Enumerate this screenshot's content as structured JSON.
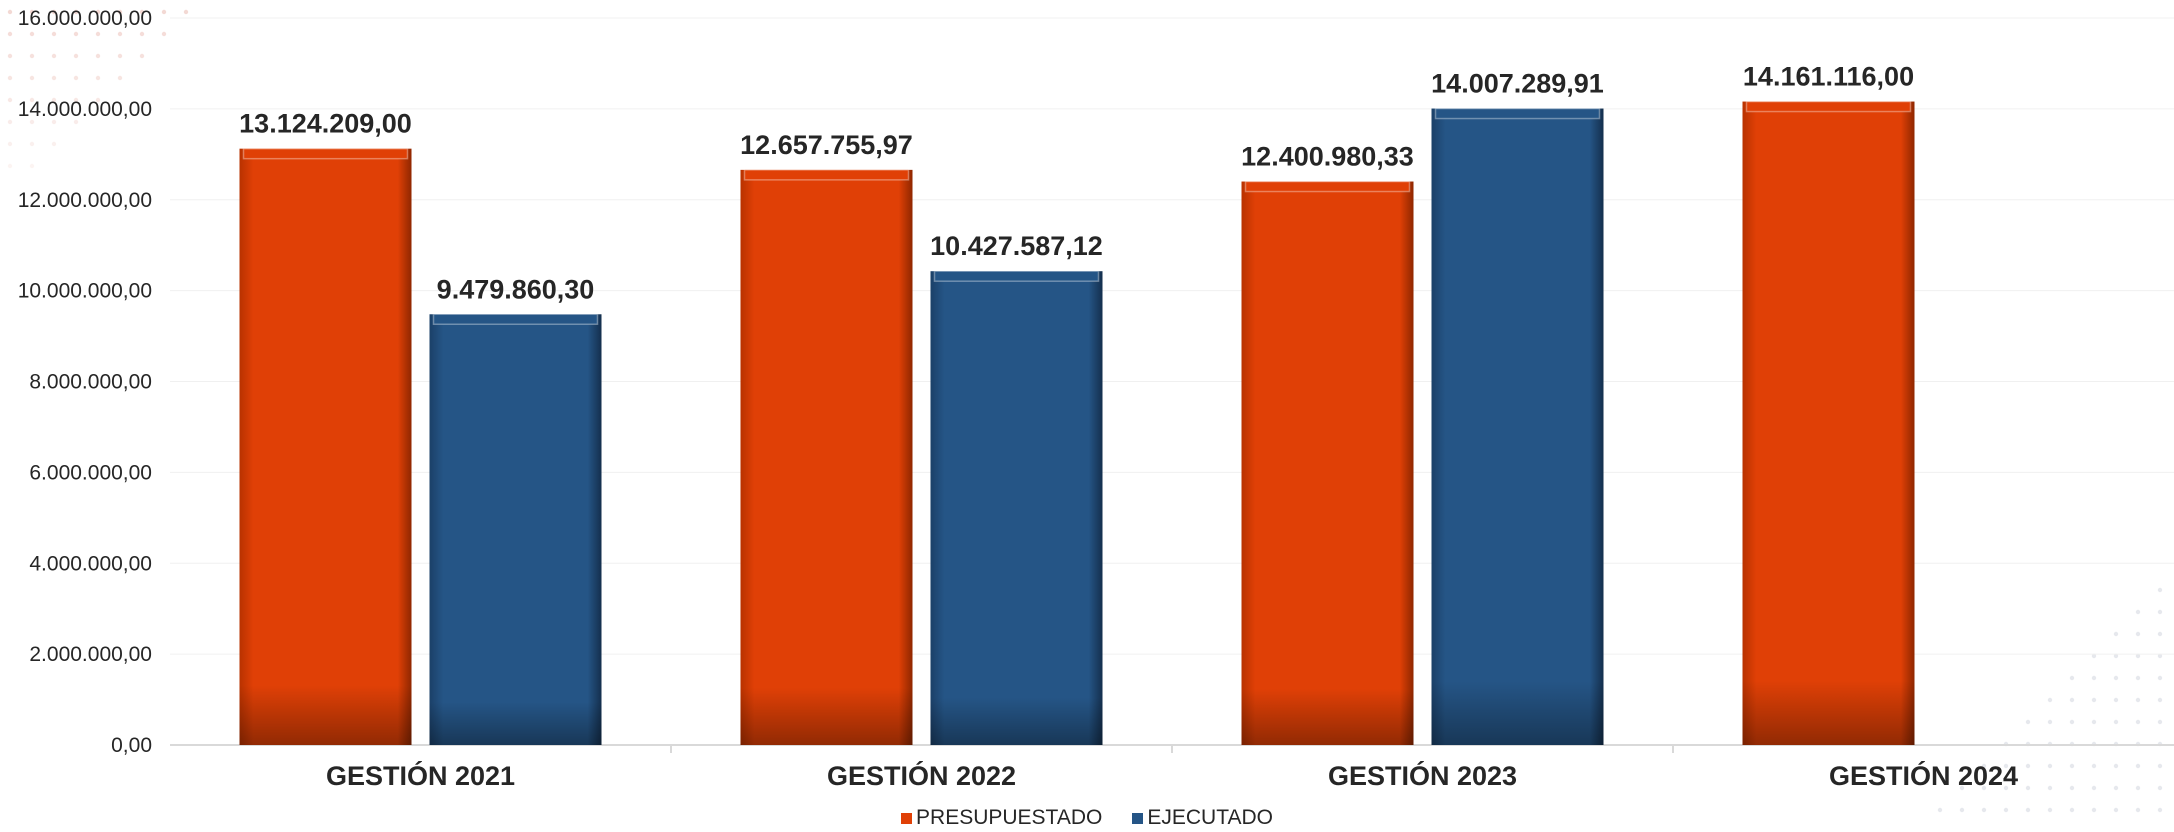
{
  "colors": {
    "presupuestado": "#E04006",
    "ejecutado": "#255586"
  },
  "chart_data": {
    "type": "bar",
    "categories": [
      "GESTIÓN 2021",
      "GESTIÓN 2022",
      "GESTIÓN 2023",
      "GESTIÓN 2024"
    ],
    "series": [
      {
        "name": "PRESUPUESTADO",
        "values": [
          13124209.0,
          12657755.97,
          12400980.33,
          14161116.0
        ],
        "labels": [
          "13.124.209,00",
          "12.657.755,97",
          "12.400.980,33",
          "14.161.116,00"
        ]
      },
      {
        "name": "EJECUTADO",
        "values": [
          9479860.3,
          10427587.12,
          14007289.91,
          null
        ],
        "labels": [
          "9.479.860,30",
          "10.427.587,12",
          "14.007.289,91",
          null
        ]
      }
    ],
    "ylim": [
      0,
      16000000
    ],
    "yticks": [
      0,
      2000000,
      4000000,
      6000000,
      8000000,
      10000000,
      12000000,
      14000000,
      16000000
    ],
    "ytick_labels": [
      "0,00",
      "2.000.000,00",
      "4.000.000,00",
      "6.000.000,00",
      "8.000.000,00",
      "10.000.000,00",
      "12.000.000,00",
      "14.000.000,00",
      "16.000.000,00"
    ],
    "grid": true,
    "legend_position": "bottom"
  }
}
